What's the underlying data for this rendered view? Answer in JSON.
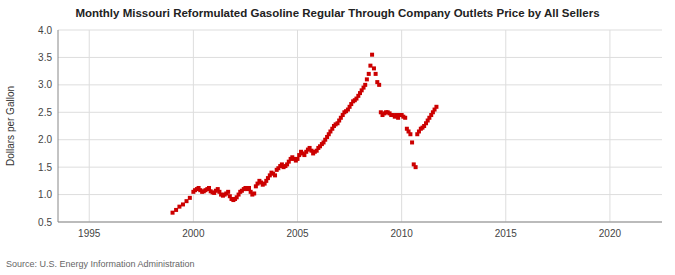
{
  "chart_data": {
    "type": "scatter",
    "title": "Monthly Missouri Reformulated Gasoline Regular Through Company Outlets Price by All Sellers",
    "ylabel": "Dollars per Gallon",
    "source": "Source: U.S. Energy Information Administration",
    "color": "#cc0000",
    "marker": "square",
    "grid": true,
    "xlim": [
      1993.5,
      2022.5
    ],
    "ylim": [
      0.5,
      4.0
    ],
    "xticks": [
      1995,
      2000,
      2005,
      2010,
      2015,
      2020
    ],
    "yticks": [
      0.5,
      {
        "value": 1.0,
        "label": "1.0"
      },
      1.5,
      {
        "value": 2.0,
        "label": "2.0"
      },
      2.5,
      {
        "value": 3.0,
        "label": "3.0"
      },
      3.5,
      {
        "value": 4.0,
        "label": "4.0"
      }
    ],
    "x": [
      1999.0,
      1999.17,
      1999.33,
      1999.5,
      1999.67,
      1999.83,
      2000.0,
      2000.08,
      2000.17,
      2000.25,
      2000.33,
      2000.42,
      2000.5,
      2000.58,
      2000.67,
      2000.75,
      2000.83,
      2000.92,
      2001.0,
      2001.08,
      2001.17,
      2001.25,
      2001.33,
      2001.42,
      2001.5,
      2001.58,
      2001.67,
      2001.75,
      2001.83,
      2001.92,
      2002.0,
      2002.08,
      2002.17,
      2002.25,
      2002.33,
      2002.42,
      2002.5,
      2002.58,
      2002.67,
      2002.75,
      2002.83,
      2002.92,
      2003.0,
      2003.08,
      2003.17,
      2003.25,
      2003.33,
      2003.42,
      2003.5,
      2003.58,
      2003.67,
      2003.75,
      2003.83,
      2003.92,
      2004.0,
      2004.08,
      2004.17,
      2004.25,
      2004.33,
      2004.42,
      2004.5,
      2004.58,
      2004.67,
      2004.75,
      2004.83,
      2004.92,
      2005.0,
      2005.08,
      2005.17,
      2005.25,
      2005.33,
      2005.42,
      2005.5,
      2005.58,
      2005.67,
      2005.75,
      2005.83,
      2005.92,
      2006.0,
      2006.08,
      2006.17,
      2006.25,
      2006.33,
      2006.42,
      2006.5,
      2006.58,
      2006.67,
      2006.75,
      2006.83,
      2006.92,
      2007.0,
      2007.08,
      2007.17,
      2007.25,
      2007.33,
      2007.42,
      2007.5,
      2007.58,
      2007.67,
      2007.75,
      2007.83,
      2007.92,
      2008.0,
      2008.08,
      2008.17,
      2008.25,
      2008.33,
      2008.42,
      2008.5,
      2008.58,
      2008.67,
      2008.75,
      2008.83,
      2008.92,
      2009.0,
      2009.08,
      2009.17,
      2009.25,
      2009.33,
      2009.42,
      2009.5,
      2009.58,
      2009.67,
      2009.75,
      2009.83,
      2009.92,
      2010.0,
      2010.08,
      2010.17,
      2010.25,
      2010.33,
      2010.42,
      2010.5,
      2010.58,
      2010.67,
      2010.75,
      2010.83,
      2010.92,
      2011.0,
      2011.08,
      2011.17,
      2011.25,
      2011.33,
      2011.42,
      2011.5,
      2011.58,
      2011.67
    ],
    "values": [
      0.67,
      0.72,
      0.78,
      0.82,
      0.88,
      0.94,
      1.05,
      1.08,
      1.1,
      1.12,
      1.08,
      1.05,
      1.06,
      1.08,
      1.1,
      1.12,
      1.06,
      1.04,
      1.03,
      1.07,
      1.1,
      1.05,
      1.0,
      0.98,
      1.0,
      1.02,
      1.05,
      0.97,
      0.92,
      0.9,
      0.92,
      0.95,
      1.0,
      1.05,
      1.07,
      1.1,
      1.12,
      1.1,
      1.12,
      1.05,
      1.0,
      1.02,
      1.15,
      1.2,
      1.25,
      1.22,
      1.18,
      1.2,
      1.25,
      1.3,
      1.35,
      1.4,
      1.38,
      1.35,
      1.45,
      1.48,
      1.52,
      1.55,
      1.5,
      1.52,
      1.55,
      1.6,
      1.65,
      1.68,
      1.65,
      1.62,
      1.65,
      1.72,
      1.78,
      1.75,
      1.72,
      1.78,
      1.82,
      1.85,
      1.8,
      1.75,
      1.78,
      1.8,
      1.85,
      1.88,
      1.92,
      1.95,
      2.0,
      2.05,
      2.1,
      2.15,
      2.2,
      2.25,
      2.28,
      2.3,
      2.35,
      2.4,
      2.45,
      2.5,
      2.52,
      2.55,
      2.6,
      2.65,
      2.7,
      2.72,
      2.75,
      2.8,
      2.85,
      2.9,
      2.95,
      3.0,
      3.1,
      3.2,
      3.35,
      3.55,
      3.3,
      3.2,
      3.05,
      3.0,
      2.5,
      2.45,
      2.48,
      2.5,
      2.5,
      2.48,
      2.45,
      2.45,
      2.42,
      2.45,
      2.4,
      2.45,
      2.45,
      2.42,
      2.4,
      2.2,
      2.15,
      2.1,
      1.95,
      1.55,
      1.5,
      2.1,
      2.15,
      2.2,
      2.22,
      2.25,
      2.3,
      2.35,
      2.4,
      2.45,
      2.5,
      2.55,
      2.6
    ]
  }
}
